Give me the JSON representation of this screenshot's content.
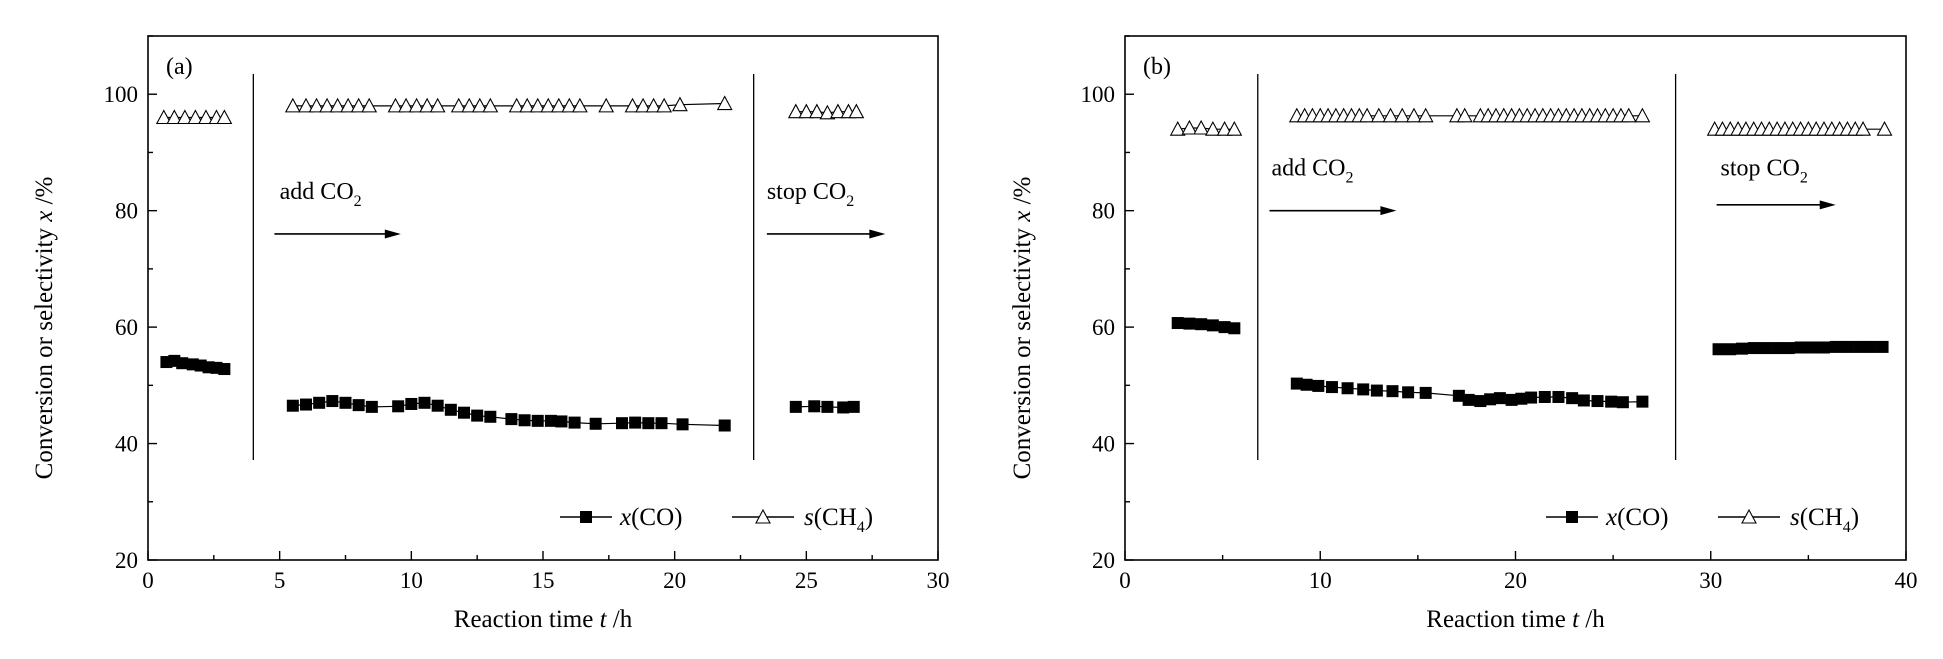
{
  "chart_data": [
    {
      "type": "scatter",
      "panel_label": "(a)",
      "xlabel_parts": {
        "text": "Reaction time ",
        "var": "t",
        "unit": " /h"
      },
      "ylabel_parts": {
        "text": "Conversion or selectivity ",
        "var": "x",
        "unit": " /%"
      },
      "xlim": [
        0,
        30
      ],
      "ylim": [
        20,
        110
      ],
      "xticks": [
        0,
        5,
        10,
        15,
        20,
        25,
        30
      ],
      "yticks": [
        20,
        40,
        60,
        80,
        100
      ],
      "grid": false,
      "legend_position": "bottom-right",
      "series": [
        {
          "name": "x(CO)",
          "marker": "filled-square",
          "segments": [
            [
              [
                0.7,
                54.0
              ],
              [
                1.0,
                54.2
              ],
              [
                1.3,
                53.8
              ],
              [
                1.7,
                53.6
              ],
              [
                2.0,
                53.4
              ],
              [
                2.3,
                53.1
              ],
              [
                2.6,
                53.0
              ],
              [
                2.9,
                52.8
              ]
            ],
            [
              [
                5.5,
                46.5
              ],
              [
                6.0,
                46.7
              ],
              [
                6.5,
                47.0
              ],
              [
                7.0,
                47.3
              ],
              [
                7.5,
                47.0
              ],
              [
                8.0,
                46.6
              ],
              [
                8.5,
                46.3
              ],
              [
                9.5,
                46.4
              ],
              [
                10.0,
                46.8
              ],
              [
                10.5,
                47.0
              ],
              [
                11.0,
                46.5
              ],
              [
                11.5,
                45.8
              ],
              [
                12.0,
                45.3
              ],
              [
                12.5,
                44.8
              ],
              [
                13.0,
                44.6
              ],
              [
                13.8,
                44.2
              ],
              [
                14.3,
                44.0
              ],
              [
                14.8,
                43.9
              ],
              [
                15.3,
                43.9
              ],
              [
                15.7,
                43.8
              ],
              [
                16.2,
                43.6
              ],
              [
                17.0,
                43.4
              ],
              [
                18.0,
                43.5
              ],
              [
                18.5,
                43.6
              ],
              [
                19.0,
                43.5
              ],
              [
                19.5,
                43.5
              ],
              [
                20.3,
                43.3
              ],
              [
                21.9,
                43.1
              ]
            ],
            [
              [
                24.6,
                46.3
              ],
              [
                25.3,
                46.4
              ],
              [
                25.8,
                46.3
              ],
              [
                26.4,
                46.2
              ],
              [
                26.8,
                46.3
              ]
            ]
          ]
        },
        {
          "name": "s(CH4)",
          "marker": "open-triangle",
          "segments": [
            [
              [
                0.6,
                96.0
              ],
              [
                1.0,
                96.0
              ],
              [
                1.4,
                96.0
              ],
              [
                1.8,
                96.0
              ],
              [
                2.2,
                96.0
              ],
              [
                2.6,
                96.0
              ],
              [
                2.9,
                96.0
              ]
            ],
            [
              [
                5.5,
                98.0
              ],
              [
                6.0,
                98.0
              ],
              [
                6.4,
                98.0
              ],
              [
                6.8,
                98.0
              ],
              [
                7.2,
                98.0
              ],
              [
                7.6,
                98.0
              ],
              [
                8.0,
                98.0
              ],
              [
                8.4,
                98.0
              ],
              [
                9.4,
                98.0
              ],
              [
                9.8,
                98.0
              ],
              [
                10.2,
                98.0
              ],
              [
                10.6,
                98.0
              ],
              [
                11.0,
                98.0
              ],
              [
                11.8,
                98.0
              ],
              [
                12.2,
                98.0
              ],
              [
                12.6,
                98.0
              ],
              [
                13.0,
                98.0
              ],
              [
                14.0,
                98.0
              ],
              [
                14.4,
                98.0
              ],
              [
                14.8,
                98.0
              ],
              [
                15.2,
                98.0
              ],
              [
                15.6,
                98.0
              ],
              [
                16.0,
                98.0
              ],
              [
                16.4,
                98.0
              ],
              [
                17.4,
                98.0
              ],
              [
                18.4,
                98.0
              ],
              [
                18.8,
                98.0
              ],
              [
                19.2,
                98.0
              ],
              [
                19.6,
                98.0
              ],
              [
                20.2,
                98.2
              ],
              [
                21.9,
                98.4
              ]
            ],
            [
              [
                24.6,
                97.0
              ],
              [
                25.0,
                97.0
              ],
              [
                25.4,
                97.0
              ],
              [
                25.8,
                96.8
              ],
              [
                26.2,
                97.0
              ],
              [
                26.6,
                97.0
              ],
              [
                26.9,
                97.0
              ]
            ]
          ]
        }
      ],
      "vlines": [
        4.0,
        23.0
      ],
      "annotations": [
        {
          "text": "add CO",
          "sub": "2",
          "x": 5.0,
          "y": 82,
          "arrow": [
            4.8,
            9.6,
            76
          ]
        },
        {
          "text": "stop CO",
          "sub": "2",
          "x": 23.5,
          "y": 82,
          "arrow": [
            23.5,
            28.0,
            76
          ]
        }
      ]
    },
    {
      "type": "scatter",
      "panel_label": "(b)",
      "xlabel_parts": {
        "text": "Reaction time ",
        "var": "t",
        "unit": " /h"
      },
      "ylabel_parts": {
        "text": "Conversion or selectivity ",
        "var": "x",
        "unit": " /%"
      },
      "xlim": [
        0,
        40
      ],
      "ylim": [
        20,
        110
      ],
      "xticks": [
        0,
        10,
        20,
        30,
        40
      ],
      "yticks": [
        20,
        40,
        60,
        80,
        100
      ],
      "grid": false,
      "legend_position": "bottom-right",
      "series": [
        {
          "name": "x(CO)",
          "marker": "filled-square",
          "segments": [
            [
              [
                2.7,
                60.7
              ],
              [
                3.3,
                60.6
              ],
              [
                3.9,
                60.5
              ],
              [
                4.5,
                60.3
              ],
              [
                5.1,
                60.0
              ],
              [
                5.6,
                59.8
              ]
            ],
            [
              [
                8.8,
                50.3
              ],
              [
                9.3,
                50.1
              ],
              [
                9.9,
                49.9
              ],
              [
                10.6,
                49.7
              ],
              [
                11.4,
                49.5
              ],
              [
                12.2,
                49.3
              ],
              [
                12.9,
                49.1
              ],
              [
                13.7,
                49.0
              ],
              [
                14.5,
                48.8
              ],
              [
                15.4,
                48.7
              ],
              [
                17.1,
                48.2
              ],
              [
                17.6,
                47.5
              ],
              [
                18.2,
                47.3
              ],
              [
                18.7,
                47.6
              ],
              [
                19.2,
                47.8
              ],
              [
                19.8,
                47.5
              ],
              [
                20.3,
                47.7
              ],
              [
                20.8,
                47.9
              ],
              [
                21.5,
                48.0
              ],
              [
                22.2,
                48.0
              ],
              [
                22.9,
                47.8
              ],
              [
                23.5,
                47.4
              ],
              [
                24.2,
                47.3
              ],
              [
                24.9,
                47.2
              ],
              [
                25.5,
                47.1
              ],
              [
                26.5,
                47.2
              ]
            ],
            [
              [
                30.4,
                56.2
              ],
              [
                31.0,
                56.2
              ],
              [
                31.6,
                56.3
              ],
              [
                32.2,
                56.4
              ],
              [
                32.8,
                56.4
              ],
              [
                33.4,
                56.4
              ],
              [
                34.0,
                56.4
              ],
              [
                34.6,
                56.5
              ],
              [
                35.2,
                56.5
              ],
              [
                35.8,
                56.5
              ],
              [
                36.4,
                56.6
              ],
              [
                37.0,
                56.6
              ],
              [
                37.6,
                56.6
              ],
              [
                38.2,
                56.6
              ],
              [
                38.8,
                56.6
              ]
            ]
          ]
        },
        {
          "name": "s(CH4)",
          "marker": "open-triangle",
          "segments": [
            [
              [
                2.7,
                94.0
              ],
              [
                3.3,
                94.2
              ],
              [
                3.9,
                94.2
              ],
              [
                4.5,
                94.0
              ],
              [
                5.1,
                94.0
              ],
              [
                5.6,
                94.0
              ]
            ],
            [
              [
                8.8,
                96.3
              ],
              [
                9.2,
                96.3
              ],
              [
                9.6,
                96.3
              ],
              [
                10.0,
                96.3
              ],
              [
                10.4,
                96.3
              ],
              [
                10.8,
                96.3
              ],
              [
                11.2,
                96.3
              ],
              [
                11.6,
                96.3
              ],
              [
                12.0,
                96.3
              ],
              [
                12.4,
                96.3
              ],
              [
                13.0,
                96.3
              ],
              [
                13.6,
                96.3
              ],
              [
                14.2,
                96.3
              ],
              [
                14.8,
                96.3
              ],
              [
                15.4,
                96.3
              ],
              [
                17.0,
                96.3
              ],
              [
                17.4,
                96.3
              ],
              [
                18.2,
                96.3
              ],
              [
                18.6,
                96.3
              ],
              [
                19.0,
                96.3
              ],
              [
                19.4,
                96.3
              ],
              [
                19.8,
                96.3
              ],
              [
                20.2,
                96.3
              ],
              [
                20.6,
                96.3
              ],
              [
                21.0,
                96.3
              ],
              [
                21.4,
                96.3
              ],
              [
                21.8,
                96.3
              ],
              [
                22.2,
                96.3
              ],
              [
                22.6,
                96.3
              ],
              [
                23.0,
                96.3
              ],
              [
                23.4,
                96.3
              ],
              [
                23.8,
                96.3
              ],
              [
                24.2,
                96.3
              ],
              [
                24.6,
                96.3
              ],
              [
                25.0,
                96.3
              ],
              [
                25.4,
                96.3
              ],
              [
                25.8,
                96.3
              ],
              [
                26.5,
                96.3
              ]
            ],
            [
              [
                30.2,
                94.0
              ],
              [
                30.6,
                94.0
              ],
              [
                31.0,
                94.0
              ],
              [
                31.4,
                94.0
              ],
              [
                31.8,
                94.0
              ],
              [
                32.2,
                94.0
              ],
              [
                32.6,
                94.0
              ],
              [
                33.0,
                94.0
              ],
              [
                33.4,
                94.0
              ],
              [
                33.8,
                94.0
              ],
              [
                34.2,
                94.0
              ],
              [
                34.6,
                94.0
              ],
              [
                35.0,
                94.0
              ],
              [
                35.4,
                94.0
              ],
              [
                35.8,
                94.0
              ],
              [
                36.2,
                94.0
              ],
              [
                36.6,
                94.0
              ],
              [
                37.0,
                94.0
              ],
              [
                37.4,
                94.0
              ],
              [
                37.8,
                94.0
              ],
              [
                38.9,
                94.0
              ]
            ]
          ]
        }
      ],
      "vlines": [
        6.8,
        28.2
      ],
      "annotations": [
        {
          "text": "add CO",
          "sub": "2",
          "x": 7.5,
          "y": 86,
          "arrow": [
            7.4,
            13.9,
            80
          ]
        },
        {
          "text": "stop CO",
          "sub": "2",
          "x": 30.5,
          "y": 86,
          "arrow": [
            30.3,
            36.4,
            81
          ]
        }
      ]
    }
  ]
}
